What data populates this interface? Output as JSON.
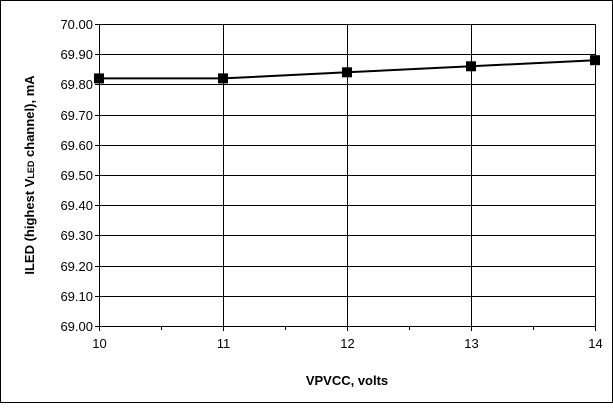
{
  "chart_data": {
    "type": "line",
    "x": [
      10,
      11,
      12,
      13,
      14
    ],
    "series": [
      {
        "values": [
          69.82,
          69.82,
          69.84,
          69.86,
          69.88
        ]
      }
    ],
    "xlabel": "VPVCC, volts",
    "ylabel": {
      "main": "ILED (highest V",
      "subscript": "LED",
      "suffix": " channel), mA"
    },
    "xlim": [
      10,
      14
    ],
    "ylim": [
      69.0,
      70.0
    ],
    "x_ticks": [
      "10",
      "11",
      "12",
      "13",
      "14"
    ],
    "y_ticks": [
      "69.00",
      "69.10",
      "69.20",
      "69.30",
      "69.40",
      "69.50",
      "69.60",
      "69.70",
      "69.80",
      "69.90",
      "70.00"
    ],
    "grid": true,
    "marker": "square",
    "colors": {
      "line": "#000000",
      "grid": "#000000",
      "background": "#ffffff"
    }
  }
}
